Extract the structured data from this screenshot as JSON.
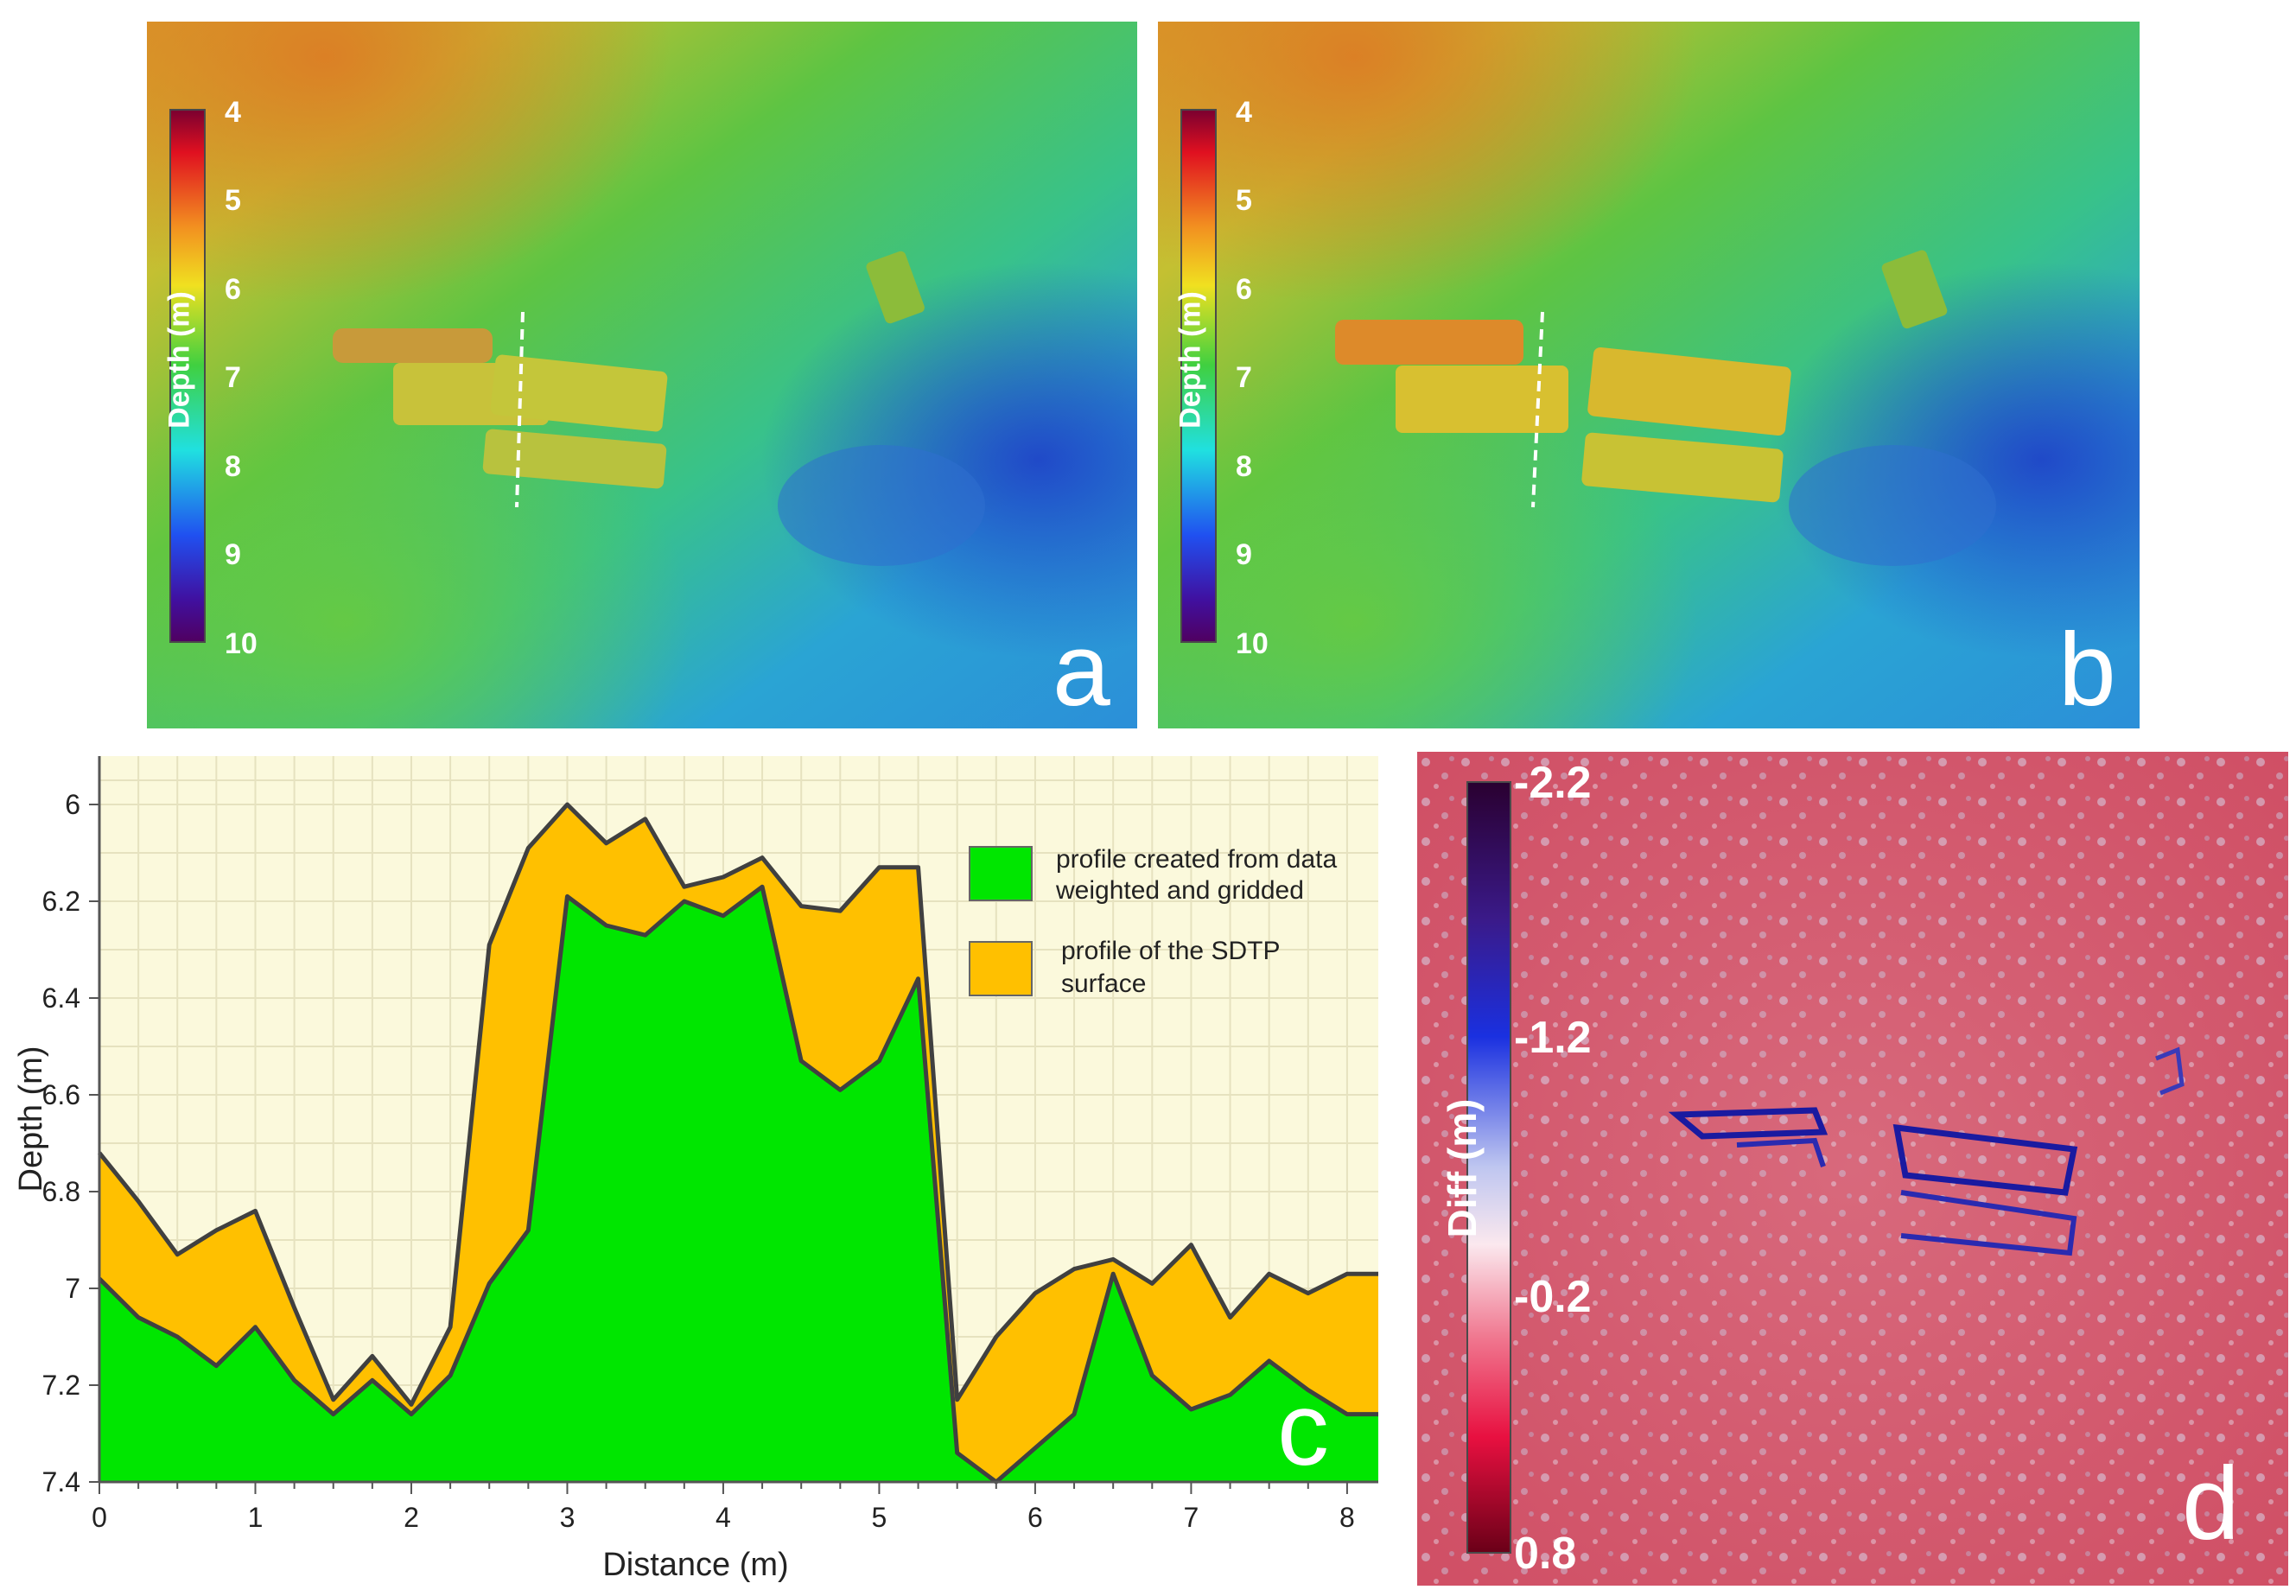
{
  "panels": {
    "a": {
      "letter": "a",
      "colorbar_title": "Depth (m)",
      "colorbar_ticks": [
        "4",
        "5",
        "6",
        "7",
        "8",
        "9",
        "10"
      ]
    },
    "b": {
      "letter": "b",
      "colorbar_title": "Depth (m)",
      "colorbar_ticks": [
        "4",
        "5",
        "6",
        "7",
        "8",
        "9",
        "10"
      ]
    },
    "d": {
      "letter": "d",
      "colorbar_title": "Diff (m)",
      "colorbar_ticks": [
        "-2.2",
        "-1.2",
        "-0.2",
        "0.8"
      ]
    }
  },
  "colors": {
    "plot_background": "#fbf9dc",
    "grid": "#e6e2bf",
    "outline": "#404040",
    "data_profile": "#00e600",
    "sdtp_profile": "#ffc000",
    "diff_base": "#d8566b"
  },
  "chart_data": {
    "type": "area",
    "panel_letter": "c",
    "xlabel": "Distance (m)",
    "ylabel": "Depth (m)",
    "xlim": [
      0,
      8.2
    ],
    "ylim": [
      7.4,
      5.9
    ],
    "y_inverted": true,
    "grid": true,
    "legend_position": "top-right",
    "x_ticks": [
      "0",
      "1",
      "2",
      "3",
      "4",
      "5",
      "6",
      "7",
      "8"
    ],
    "y_ticks": [
      "6",
      "6.2",
      "6.4",
      "6.6",
      "6.8",
      "7",
      "7.2",
      "7.4"
    ],
    "x": [
      0,
      0.25,
      0.5,
      0.75,
      1,
      1.25,
      1.5,
      1.75,
      2,
      2.25,
      2.5,
      2.75,
      3,
      3.25,
      3.5,
      3.75,
      4,
      4.25,
      4.5,
      4.75,
      5,
      5.25,
      5.5,
      5.75,
      6,
      6.25,
      6.5,
      6.75,
      7,
      7.25,
      7.5,
      7.75,
      8,
      8.2
    ],
    "series": [
      {
        "name": "profile of the SDTP surface",
        "values": [
          6.72,
          6.82,
          6.93,
          6.88,
          6.84,
          7.04,
          7.23,
          7.14,
          7.24,
          7.08,
          6.29,
          6.09,
          6.0,
          6.08,
          6.03,
          6.17,
          6.15,
          6.11,
          6.21,
          6.22,
          6.13,
          6.13,
          7.23,
          7.1,
          7.01,
          6.96,
          6.94,
          6.99,
          6.91,
          7.06,
          6.97,
          7.01,
          6.97,
          6.97
        ]
      },
      {
        "name": "profile created from data weighted and gridded",
        "values": [
          6.98,
          7.06,
          7.1,
          7.16,
          7.08,
          7.19,
          7.26,
          7.19,
          7.26,
          7.18,
          6.99,
          6.88,
          6.19,
          6.25,
          6.27,
          6.2,
          6.23,
          6.17,
          6.53,
          6.59,
          6.53,
          6.36,
          7.34,
          7.4,
          7.33,
          7.26,
          6.97,
          7.18,
          7.25,
          7.22,
          7.15,
          7.21,
          7.26,
          7.26
        ]
      }
    ],
    "legend": [
      {
        "label_lines": [
          "profile created from data",
          "weighted and gridded"
        ],
        "color": "#00e600"
      },
      {
        "label_lines": [
          "profile of the SDTP",
          "surface"
        ],
        "color": "#ffc000"
      }
    ]
  }
}
